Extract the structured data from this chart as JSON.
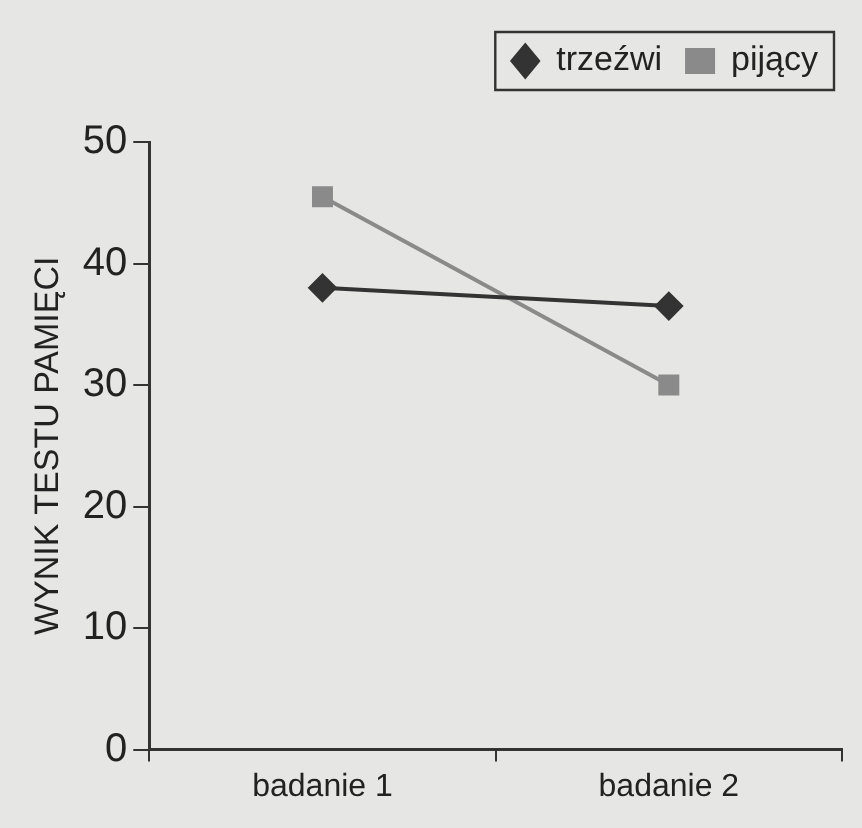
{
  "chart_data": {
    "type": "line",
    "ylabel": "WYNIK TESTU PAMIĘCI",
    "categories": [
      "badanie 1",
      "badanie 2"
    ],
    "series": [
      {
        "name": "trzeźwi",
        "color": "#333333",
        "marker": "diamond",
        "values": [
          38,
          36.5
        ]
      },
      {
        "name": "pijący",
        "color": "#8a8a8a",
        "marker": "square",
        "values": [
          45.5,
          30
        ]
      }
    ],
    "ylim": [
      0,
      50
    ],
    "yticks": [
      0,
      10,
      20,
      30,
      40,
      50
    ],
    "grid": false,
    "legend": "top right"
  }
}
